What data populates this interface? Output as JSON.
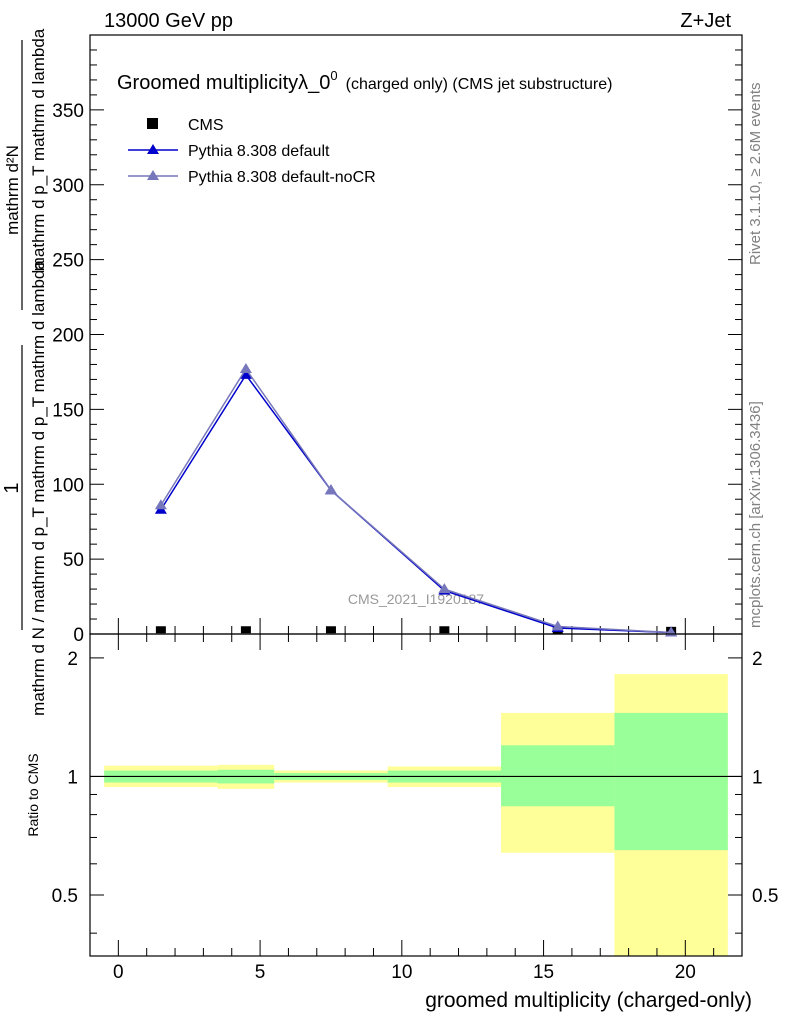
{
  "header": {
    "left": "13000 GeV pp",
    "right": "Z+Jet"
  },
  "side": {
    "rivet": "Rivet 3.1.10, ≥ 2.6M events",
    "mcplots": "mcplots.cern.ch [arXiv:1306.3436]"
  },
  "title": {
    "main": "Groomed multiplicity",
    "lambda": "λ_0",
    "sup": "0",
    "sub": "(charged only) (CMS jet substructure)"
  },
  "watermark": "CMS_2021_I1920187",
  "chart_data": [
    {
      "type": "line",
      "xlabel": "groomed multiplicity (charged-only)",
      "ylabel": {
        "numerator": "1",
        "denominator": "mathrm d N / mathrm d p_T mathrm d p_T mathrm d lambda",
        "num_r": "mathrm d²N",
        "den_r": "mathrm d p_T mathrm d lambda"
      },
      "ylim": [
        0,
        400
      ],
      "yticks": [
        0,
        50,
        100,
        150,
        200,
        250,
        300,
        350
      ],
      "xlim": [
        -1,
        22
      ],
      "legend": {
        "placement": "top-left",
        "entries": [
          "CMS",
          "Pythia 8.308 default",
          "Pythia 8.308 default-noCR"
        ]
      },
      "colors": {
        "CMS": "#000000",
        "Pythia 8.308 default": "#0000cc",
        "Pythia 8.308 default-noCR": "#7777bb"
      },
      "series": [
        {
          "name": "CMS",
          "x": [
            1.5,
            4.5,
            7.5,
            11.5,
            15.5,
            19.5
          ],
          "y": [
            0.5,
            0.5,
            0.5,
            0.5,
            0.2,
            0.1
          ]
        },
        {
          "name": "Pythia 8.308 default",
          "x": [
            1.5,
            4.5,
            7.5,
            11.5,
            15.5,
            19.5
          ],
          "y": [
            83,
            173,
            96,
            29,
            4,
            1
          ]
        },
        {
          "name": "Pythia 8.308 default-noCR",
          "x": [
            1.5,
            4.5,
            7.5,
            11.5,
            15.5,
            19.5
          ],
          "y": [
            86,
            177,
            96,
            30,
            5,
            1
          ]
        }
      ]
    },
    {
      "type": "area",
      "ylabel": "Ratio to CMS",
      "ylim": [
        0.35,
        2.3
      ],
      "yscale": "log",
      "yticks": [
        0.5,
        1,
        2
      ],
      "xticks": [
        0,
        5,
        10,
        15,
        20
      ],
      "xlim": [
        -1,
        22
      ],
      "bins": [
        {
          "x0": -0.5,
          "x1": 3.5,
          "inner": [
            0.965,
            1.035
          ],
          "outer": [
            0.94,
            1.065
          ]
        },
        {
          "x0": 3.5,
          "x1": 5.5,
          "inner": [
            0.96,
            1.04
          ],
          "outer": [
            0.93,
            1.07
          ]
        },
        {
          "x0": 5.5,
          "x1": 9.5,
          "inner": [
            0.98,
            1.02
          ],
          "outer": [
            0.965,
            1.035
          ]
        },
        {
          "x0": 9.5,
          "x1": 13.5,
          "inner": [
            0.965,
            1.035
          ],
          "outer": [
            0.94,
            1.06
          ]
        },
        {
          "x0": 13.5,
          "x1": 17.5,
          "inner": [
            0.84,
            1.2
          ],
          "outer": [
            0.64,
            1.45
          ]
        },
        {
          "x0": 17.5,
          "x1": 21.5,
          "inner": [
            0.65,
            1.45
          ],
          "outer": [
            0.35,
            1.82
          ]
        }
      ],
      "band_colors": {
        "inner": "#99ff99",
        "outer": "#ffff99"
      }
    }
  ]
}
